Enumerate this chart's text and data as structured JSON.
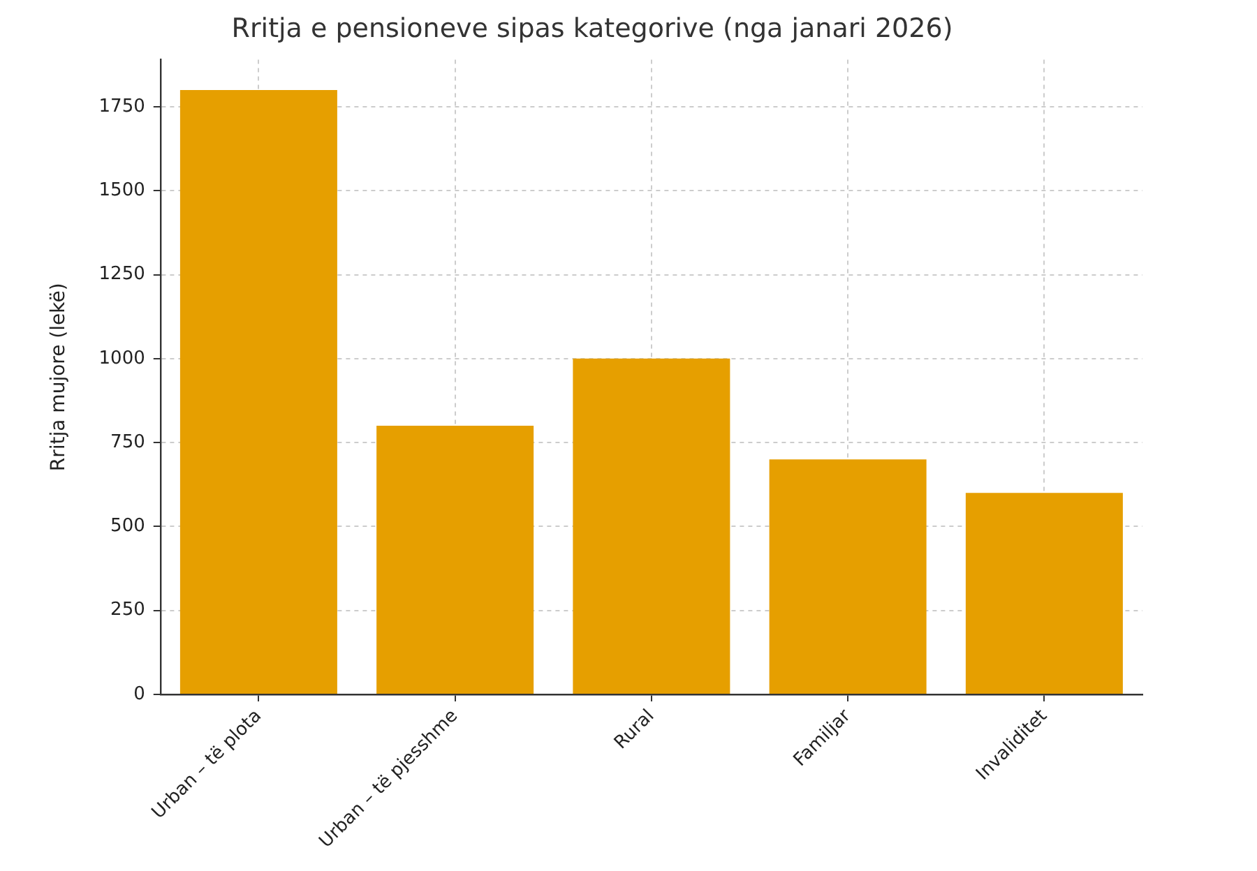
{
  "chart_data": {
    "type": "bar",
    "title": "Rritja e pensioneve sipas kategorive (nga janari 2026)",
    "ylabel": "Rritja mujore (lekë)",
    "categories": [
      "Urban – të plota",
      "Urban – të pjesshme",
      "Rural",
      "Familjar",
      "Invaliditet"
    ],
    "values": [
      1800,
      800,
      1000,
      700,
      600
    ],
    "color": "#e69f00",
    "ylim": [
      0,
      1890
    ],
    "yticks": [
      0,
      250,
      500,
      750,
      1000,
      1250,
      1500,
      1750
    ],
    "grid": true
  }
}
